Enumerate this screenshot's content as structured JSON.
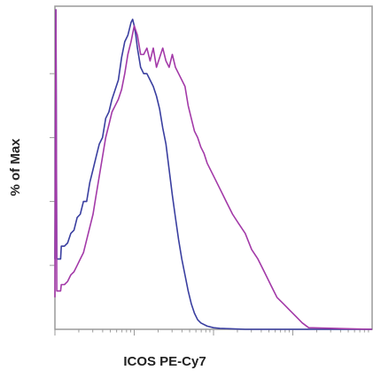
{
  "chart_data": {
    "type": "line",
    "xlabel": "ICOS PE-Cy7",
    "ylabel": "% of Max",
    "xlim": [
      0,
      100
    ],
    "ylim": [
      0,
      100
    ],
    "x_scale": "log",
    "grid": false,
    "legend": "none",
    "series": [
      {
        "color": "#3a3fa0",
        "x": [
          0,
          0.3,
          0.6,
          1.8,
          2,
          3,
          4,
          5,
          6,
          7,
          8,
          9,
          10,
          11,
          12,
          13,
          14,
          15,
          16,
          17,
          18,
          19,
          20,
          21,
          22,
          23,
          24,
          24.5,
          25,
          25.5,
          26,
          27,
          28,
          29,
          30,
          31,
          32,
          33,
          34,
          35,
          36,
          37,
          38,
          39,
          40,
          41,
          42,
          43,
          44,
          45,
          46,
          48,
          50,
          52,
          55,
          60,
          100
        ],
        "y": [
          22,
          100,
          22,
          22,
          26,
          26,
          27,
          30,
          31,
          35,
          36,
          40,
          40,
          46,
          50,
          54,
          58,
          60,
          66,
          68,
          72,
          75,
          78,
          85,
          90,
          92,
          96,
          97,
          95,
          92,
          88,
          82,
          80,
          80,
          78,
          76,
          73,
          69,
          63,
          58,
          50,
          42,
          35,
          28,
          22,
          17,
          12,
          8,
          5,
          3,
          2,
          1,
          0.5,
          0.3,
          0.2,
          0,
          0
        ]
      },
      {
        "color": "#a33aa8",
        "x": [
          0,
          0.3,
          0.6,
          1.8,
          2,
          3,
          4,
          5,
          6,
          7,
          8,
          9,
          10,
          11,
          12,
          13,
          14,
          15,
          16,
          17,
          18,
          19,
          20,
          21,
          22,
          23,
          24,
          25,
          26,
          27,
          28,
          29,
          30,
          31,
          32,
          33,
          34,
          35,
          36,
          37,
          38,
          39,
          40,
          41,
          42,
          43,
          44,
          45,
          46,
          47,
          48,
          50,
          52,
          54,
          56,
          58,
          60,
          62,
          64,
          66,
          68,
          70,
          72,
          74,
          76,
          78,
          80,
          100
        ],
        "y": [
          10,
          100,
          12,
          12,
          14,
          14,
          15,
          17,
          18,
          20,
          22,
          24,
          28,
          32,
          36,
          42,
          48,
          54,
          60,
          64,
          68,
          70,
          72,
          75,
          80,
          86,
          90,
          95,
          92,
          86,
          86,
          88,
          84,
          88,
          82,
          85,
          88,
          84,
          82,
          86,
          82,
          80,
          78,
          76,
          70,
          66,
          62,
          60,
          57,
          55,
          52,
          48,
          44,
          40,
          36,
          33,
          30,
          25,
          22,
          18,
          14,
          10,
          8,
          6,
          4,
          2,
          0.5,
          0
        ]
      }
    ]
  }
}
